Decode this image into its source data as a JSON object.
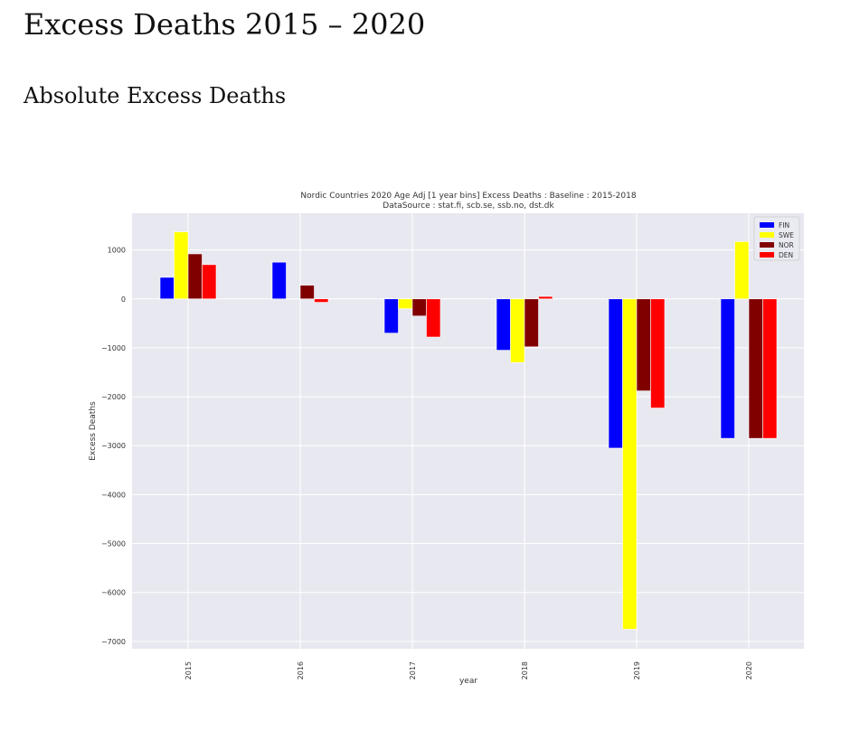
{
  "page": {
    "heading": "Excess Deaths 2015 – 2020",
    "subheading": "Absolute Excess Deaths"
  },
  "chart_data": {
    "type": "bar",
    "title": "Nordic Countries 2020 Age Adj [1 year bins] Excess Deaths : Baseline : 2015-2018",
    "subtitle": "DataSource : stat.fi, scb.se, ssb.no, dst.dk",
    "xlabel": "year",
    "ylabel": "Excess Deaths",
    "categories": [
      "2015",
      "2016",
      "2017",
      "2018",
      "2019",
      "2020"
    ],
    "ylim": [
      -7150,
      1750
    ],
    "yticks": [
      1000,
      0,
      -1000,
      -2000,
      -3000,
      -4000,
      -5000,
      -6000,
      -7000
    ],
    "grid": true,
    "legend_position": "top-right",
    "series": [
      {
        "name": "FIN",
        "color": "#0000ff",
        "values": [
          440,
          750,
          -700,
          -1050,
          -3050,
          -2850
        ]
      },
      {
        "name": "SWE",
        "color": "#ffff00",
        "values": [
          1370,
          0,
          -200,
          -1300,
          -6750,
          1170
        ]
      },
      {
        "name": "NOR",
        "color": "#800000",
        "values": [
          920,
          280,
          -350,
          -980,
          -1880,
          -2850
        ]
      },
      {
        "name": "DEN",
        "color": "#ff0000",
        "values": [
          700,
          -70,
          -780,
          50,
          -2230,
          -2850
        ]
      }
    ]
  }
}
